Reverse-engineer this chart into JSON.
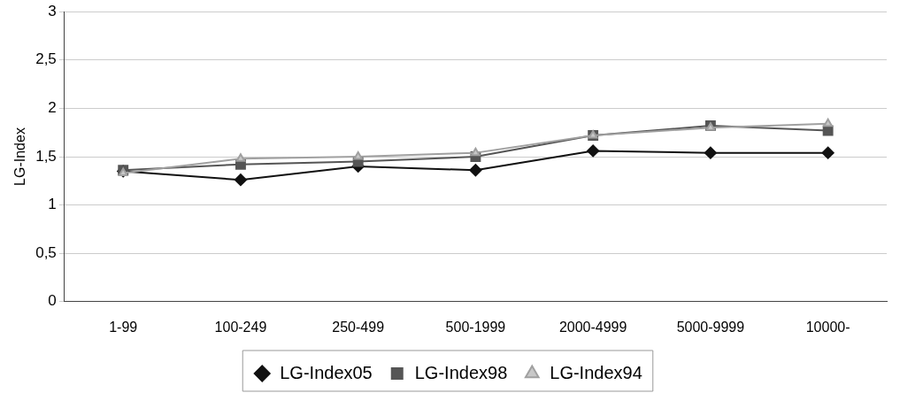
{
  "chart_data": {
    "type": "line",
    "ylabel": "LG-Index",
    "categories": [
      "1-99",
      "100-249",
      "250-499",
      "500-1999",
      "2000-4999",
      "5000-9999",
      "10000-"
    ],
    "series": [
      {
        "name": "LG-Index05",
        "color": "#111111",
        "marker": "diamond",
        "values": [
          1.35,
          1.26,
          1.4,
          1.36,
          1.56,
          1.54,
          1.54
        ]
      },
      {
        "name": "LG-Index98",
        "color": "#555555",
        "marker": "square",
        "values": [
          1.36,
          1.42,
          1.45,
          1.5,
          1.72,
          1.82,
          1.77
        ]
      },
      {
        "name": "LG-Index94",
        "color": "#a0a0a0",
        "marker": "triangle",
        "values": [
          1.33,
          1.48,
          1.5,
          1.54,
          1.72,
          1.8,
          1.84
        ]
      }
    ],
    "ylim": [
      0,
      3
    ],
    "yticks": [
      0,
      {
        "value": 0.5,
        "label": "0,5"
      },
      1,
      {
        "value": 1.5,
        "label": "1,5"
      },
      2,
      {
        "value": 2.5,
        "label": "2,5"
      },
      3
    ],
    "grid": "y",
    "legend": "bottom",
    "line_style": "solid"
  }
}
